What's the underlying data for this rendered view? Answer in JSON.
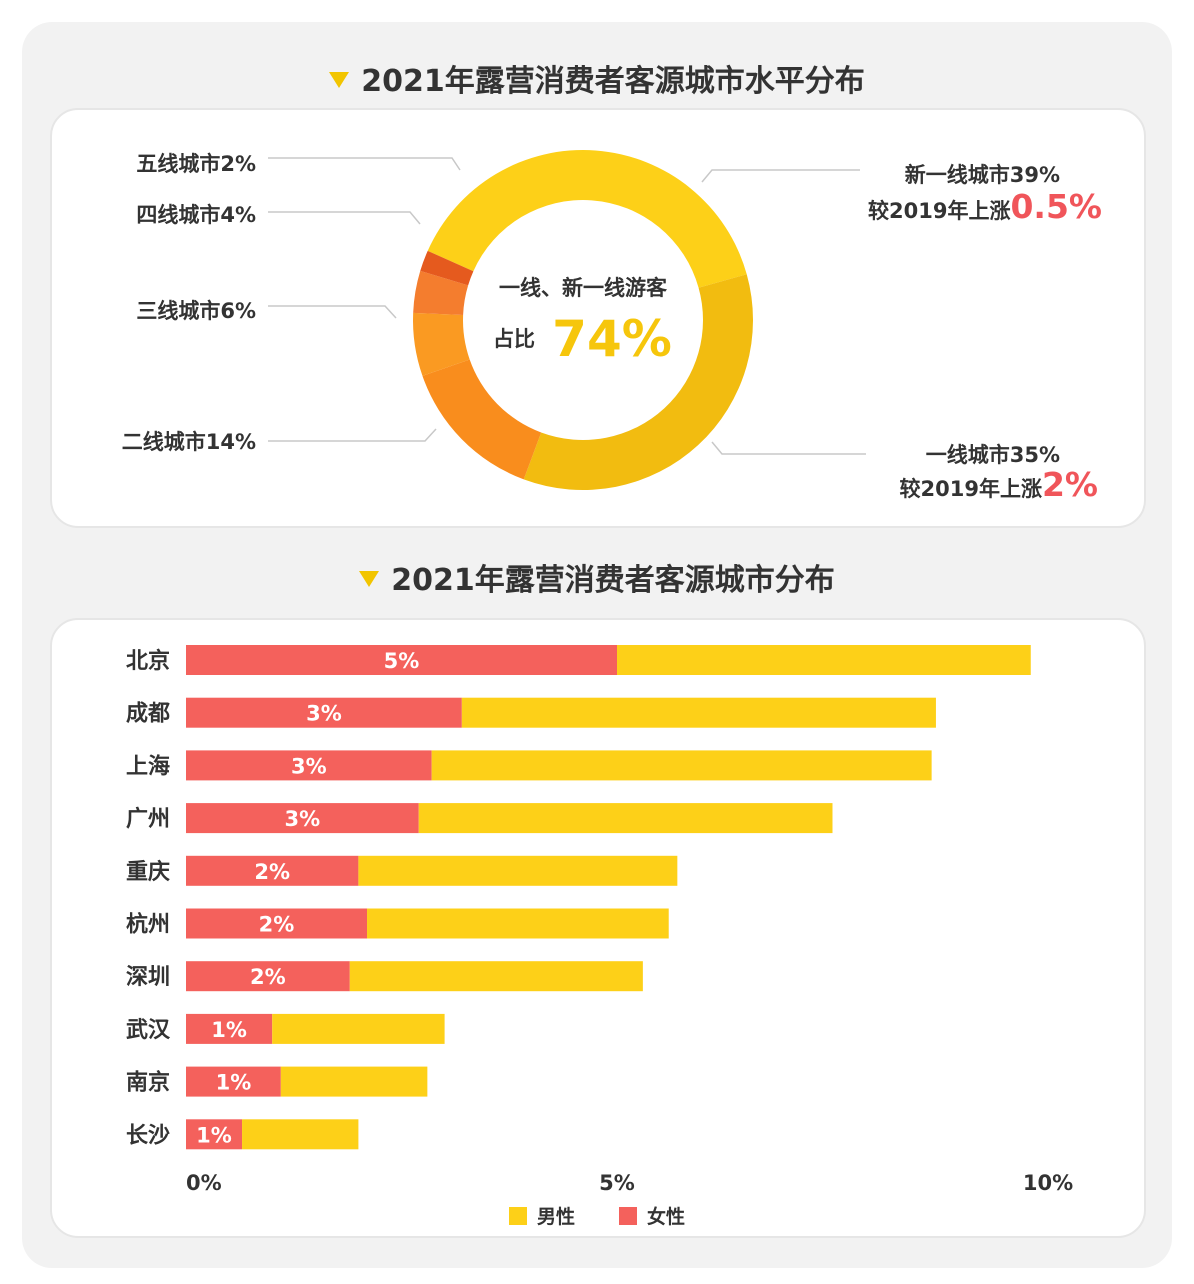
{
  "donut": {
    "title": "2021年露营消费者客源城市水平分布",
    "center_line1": "一线、新一线游客",
    "center_prefix": "占比",
    "center_value": "74%",
    "labels": {
      "tier5": "五线城市2%",
      "tier4": "四线城市4%",
      "tier3": "三线城市6%",
      "tier2": "二线城市14%",
      "new_tier1": "新一线城市39%",
      "new_tier1_change_prefix": "较2019年上涨",
      "new_tier1_change": "0.5%",
      "tier1": "一线城市35%",
      "tier1_change_prefix": "较2019年上涨",
      "tier1_change": "2%"
    }
  },
  "bars": {
    "title": "2021年露营消费者客源城市分布",
    "legend_male": "男性",
    "legend_female": "女性"
  },
  "colors": {
    "new_tier1": "#fdd018",
    "tier1": "#f2bc10",
    "tier2": "#f98d1d",
    "tier3": "#fa9a22",
    "tier4": "#f47d2e",
    "tier5": "#e55a1e",
    "female": "#f4615c",
    "male": "#fdd018",
    "accent_red": "#f0555a",
    "accent_yellow": "#f6c60c"
  },
  "chart_data": [
    {
      "type": "pie",
      "title": "2021年露营消费者客源城市水平分布",
      "slices": [
        {
          "label": "新一线城市",
          "value": 39
        },
        {
          "label": "一线城市",
          "value": 35
        },
        {
          "label": "二线城市",
          "value": 14
        },
        {
          "label": "三线城市",
          "value": 6
        },
        {
          "label": "四线城市",
          "value": 4
        },
        {
          "label": "五线城市",
          "value": 2
        }
      ]
    },
    {
      "type": "bar",
      "orientation": "horizontal",
      "stacked": true,
      "title": "2021年露营消费者客源城市分布",
      "categories": [
        "北京",
        "成都",
        "上海",
        "广州",
        "重庆",
        "杭州",
        "深圳",
        "武汉",
        "南京",
        "长沙"
      ],
      "series": [
        {
          "name": "女性",
          "values": [
            5.0,
            3.2,
            2.85,
            2.7,
            2.0,
            2.1,
            1.9,
            1.0,
            1.1,
            0.65
          ],
          "labels": [
            "5%",
            "3%",
            "3%",
            "3%",
            "2%",
            "2%",
            "2%",
            "1%",
            "1%",
            "1%"
          ]
        },
        {
          "name": "男性",
          "values": [
            4.8,
            5.5,
            5.8,
            4.8,
            3.7,
            3.5,
            3.4,
            2.0,
            1.7,
            1.35
          ]
        }
      ],
      "xlim": [
        0,
        10
      ],
      "xticks": [
        "0%",
        "5%",
        "10%"
      ],
      "legend": "bottom"
    }
  ]
}
